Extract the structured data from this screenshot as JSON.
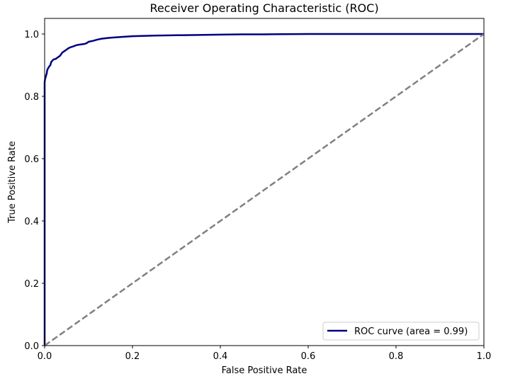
{
  "chart_data": {
    "type": "line",
    "title": "Receiver Operating Characteristic (ROC)",
    "xlabel": "False Positive Rate",
    "ylabel": "True Positive Rate",
    "xlim": [
      0.0,
      1.0
    ],
    "ylim": [
      0.0,
      1.05
    ],
    "xticks": [
      0.0,
      0.2,
      0.4,
      0.6,
      0.8,
      1.0
    ],
    "xtick_labels": [
      "0.0",
      "0.2",
      "0.4",
      "0.6",
      "0.8",
      "1.0"
    ],
    "yticks": [
      0.0,
      0.2,
      0.4,
      0.6,
      0.8,
      1.0
    ],
    "ytick_labels": [
      "0.0",
      "0.2",
      "0.4",
      "0.6",
      "0.8",
      "1.0"
    ],
    "grid": false,
    "legend_position": "lower-right",
    "series": [
      {
        "name": "ROC curve (area = 0.99)",
        "color": "#000080",
        "style": "solid",
        "x": [
          0.0,
          0.0,
          0.001,
          0.003,
          0.005,
          0.006,
          0.008,
          0.01,
          0.013,
          0.015,
          0.018,
          0.02,
          0.025,
          0.03,
          0.035,
          0.04,
          0.045,
          0.05,
          0.055,
          0.06,
          0.065,
          0.07,
          0.075,
          0.08,
          0.085,
          0.09,
          0.095,
          0.1,
          0.11,
          0.12,
          0.13,
          0.15,
          0.17,
          0.2,
          0.25,
          0.3,
          0.35,
          0.4,
          0.45,
          0.5,
          0.6,
          0.7,
          0.8,
          0.9,
          1.0
        ],
        "y": [
          0.0,
          0.845,
          0.855,
          0.865,
          0.875,
          0.885,
          0.89,
          0.895,
          0.9,
          0.91,
          0.915,
          0.918,
          0.92,
          0.925,
          0.93,
          0.94,
          0.945,
          0.95,
          0.955,
          0.958,
          0.96,
          0.963,
          0.965,
          0.966,
          0.967,
          0.968,
          0.97,
          0.975,
          0.978,
          0.982,
          0.985,
          0.988,
          0.99,
          0.993,
          0.995,
          0.996,
          0.997,
          0.998,
          0.999,
          0.999,
          1.0,
          1.0,
          1.0,
          1.0,
          1.0
        ]
      },
      {
        "name": "",
        "color": "#808080",
        "style": "dashed",
        "x": [
          0.0,
          1.0
        ],
        "y": [
          0.0,
          1.0
        ]
      }
    ]
  }
}
